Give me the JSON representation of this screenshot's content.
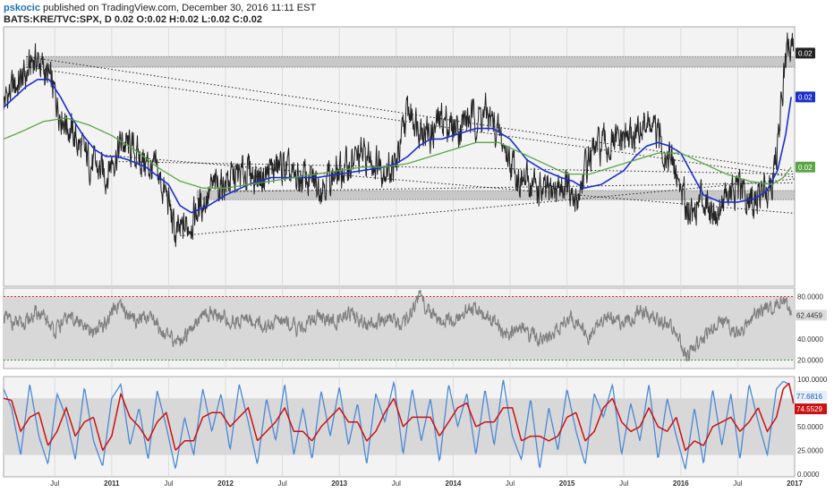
{
  "header": {
    "author": "pskocic",
    "published": "published on TradingView.com, December 30, 2016 11:11 EST",
    "symbol_line": "BATS:KRE/TVC:SPX, D  0.02 O:0.02 H:0.02 L:0.02 C:0.02"
  },
  "colors": {
    "price": "#222222",
    "sma_fast": "#1a2ecc",
    "sma_slow": "#5aa545",
    "rsi": "#7f7f7f",
    "stoch_k": "#4a88d6",
    "stoch_d": "#cc1111",
    "band": "#c8c8c8",
    "rsi_upper": "#e02020",
    "rsi_lower": "#3a9a3a"
  },
  "chart_data": [
    {
      "type": "line",
      "panel": "price",
      "x_ticks": [
        "Jul",
        "2011",
        "Jul",
        "2012",
        "Jul",
        "2013",
        "Jul",
        "2014",
        "Jul",
        "2015",
        "Jul",
        "2016",
        "Jul",
        "2017"
      ],
      "x_tick_years": [
        2010.5,
        2011.0,
        2011.5,
        2012.0,
        2012.5,
        2013.0,
        2013.5,
        2014.0,
        2014.5,
        2015.0,
        2015.5,
        2016.0,
        2016.5,
        2017.0
      ],
      "x_range": [
        2010.05,
        2017.0
      ],
      "y_range": [
        0.0146,
        0.022
      ],
      "last_labels": [
        {
          "text": "0.02",
          "series": "price",
          "value": 0.02125
        },
        {
          "text": "0.02",
          "series": "sma_fast",
          "value": 0.02
        },
        {
          "text": "0.02",
          "series": "sma_slow",
          "value": 0.018
        }
      ],
      "series": [
        {
          "key": "price",
          "x": [
            2010.05,
            2010.15,
            2010.25,
            2010.31,
            2010.36,
            2010.45,
            2010.55,
            2010.65,
            2010.75,
            2010.85,
            2010.95,
            2011.0,
            2011.1,
            2011.2,
            2011.3,
            2011.4,
            2011.5,
            2011.56,
            2011.6,
            2011.7,
            2011.8,
            2011.9,
            2012.0,
            2012.1,
            2012.2,
            2012.3,
            2012.4,
            2012.5,
            2012.6,
            2012.7,
            2012.8,
            2012.9,
            2013.0,
            2013.1,
            2013.2,
            2013.3,
            2013.4,
            2013.5,
            2013.6,
            2013.7,
            2013.8,
            2013.9,
            2014.0,
            2014.1,
            2014.2,
            2014.3,
            2014.4,
            2014.5,
            2014.6,
            2014.7,
            2014.8,
            2014.9,
            2015.0,
            2015.05,
            2015.1,
            2015.2,
            2015.3,
            2015.4,
            2015.5,
            2015.6,
            2015.7,
            2015.8,
            2015.9,
            2016.0,
            2016.05,
            2016.1,
            2016.2,
            2016.3,
            2016.4,
            2016.5,
            2016.6,
            2016.7,
            2016.8,
            2016.85,
            2016.9,
            2016.95,
            2016.99
          ],
          "values": [
            0.0199,
            0.0203,
            0.0206,
            0.0211,
            0.021,
            0.0205,
            0.0196,
            0.019,
            0.0184,
            0.018,
            0.0178,
            0.0182,
            0.0187,
            0.0184,
            0.0181,
            0.0178,
            0.017,
            0.016,
            0.0161,
            0.0165,
            0.017,
            0.0174,
            0.0176,
            0.0177,
            0.0179,
            0.0177,
            0.0179,
            0.018,
            0.0176,
            0.0177,
            0.0175,
            0.0177,
            0.0178,
            0.0181,
            0.0183,
            0.0182,
            0.018,
            0.018,
            0.0196,
            0.0193,
            0.0189,
            0.0194,
            0.0191,
            0.0193,
            0.0194,
            0.0195,
            0.0189,
            0.0182,
            0.0176,
            0.0175,
            0.0172,
            0.0174,
            0.0175,
            0.0168,
            0.0172,
            0.0183,
            0.0186,
            0.0186,
            0.0188,
            0.0189,
            0.0193,
            0.0188,
            0.0183,
            0.0174,
            0.017,
            0.0167,
            0.0172,
            0.0167,
            0.0172,
            0.0173,
            0.017,
            0.0171,
            0.0177,
            0.0185,
            0.0205,
            0.0215,
            0.0213
          ]
        },
        {
          "key": "sma_fast",
          "x": [
            2010.05,
            2010.15,
            2010.25,
            2010.35,
            2010.45,
            2010.55,
            2010.65,
            2010.75,
            2010.85,
            2010.95,
            2011.05,
            2011.15,
            2011.3,
            2011.5,
            2011.6,
            2011.7,
            2011.85,
            2012.0,
            2012.2,
            2012.4,
            2012.6,
            2012.8,
            2013.0,
            2013.2,
            2013.4,
            2013.5,
            2013.6,
            2013.7,
            2013.8,
            2013.9,
            2014.0,
            2014.1,
            2014.2,
            2014.35,
            2014.5,
            2014.65,
            2014.8,
            2014.95,
            2015.05,
            2015.15,
            2015.3,
            2015.5,
            2015.6,
            2015.7,
            2015.8,
            2015.9,
            2016.0,
            2016.1,
            2016.2,
            2016.35,
            2016.5,
            2016.65,
            2016.75,
            2016.85,
            2016.92,
            2016.97
          ],
          "values": [
            0.0197,
            0.02,
            0.0203,
            0.0205,
            0.0205,
            0.02,
            0.0194,
            0.0189,
            0.0185,
            0.0183,
            0.0183,
            0.0182,
            0.018,
            0.0175,
            0.0169,
            0.0167,
            0.0169,
            0.0172,
            0.0175,
            0.0177,
            0.0177,
            0.0177,
            0.0178,
            0.0179,
            0.018,
            0.0181,
            0.0183,
            0.0186,
            0.0188,
            0.0188,
            0.0189,
            0.019,
            0.0191,
            0.0191,
            0.0188,
            0.0182,
            0.0179,
            0.0177,
            0.0176,
            0.0174,
            0.0175,
            0.0179,
            0.0183,
            0.0186,
            0.0187,
            0.0186,
            0.0184,
            0.0178,
            0.0172,
            0.017,
            0.017,
            0.0171,
            0.0173,
            0.0179,
            0.0189,
            0.02
          ]
        },
        {
          "key": "sma_slow",
          "x": [
            2010.05,
            2010.2,
            2010.4,
            2010.6,
            2010.8,
            2011.0,
            2011.2,
            2011.4,
            2011.6,
            2011.8,
            2012.0,
            2012.2,
            2012.4,
            2012.6,
            2012.8,
            2013.0,
            2013.2,
            2013.4,
            2013.6,
            2013.8,
            2014.0,
            2014.2,
            2014.4,
            2014.6,
            2014.8,
            2015.0,
            2015.2,
            2015.4,
            2015.6,
            2015.8,
            2016.0,
            2016.2,
            2016.4,
            2016.6,
            2016.8,
            2016.9,
            2016.97
          ],
          "values": [
            0.0188,
            0.019,
            0.0193,
            0.0194,
            0.0192,
            0.0189,
            0.0185,
            0.018,
            0.0176,
            0.0174,
            0.0174,
            0.0175,
            0.0176,
            0.0177,
            0.0178,
            0.0179,
            0.018,
            0.018,
            0.0181,
            0.0183,
            0.0185,
            0.0187,
            0.0187,
            0.0184,
            0.0181,
            0.0178,
            0.0178,
            0.018,
            0.0182,
            0.0184,
            0.0184,
            0.0181,
            0.0178,
            0.0176,
            0.0175,
            0.0177,
            0.018
          ]
        }
      ],
      "bands": [
        {
          "from": 0.02085,
          "to": 0.02115,
          "x_start": 2010.25,
          "x_end": 2017.0
        },
        {
          "from": 0.01707,
          "to": 0.01733,
          "x_start": 2011.75,
          "x_end": 2017.0
        }
      ]
    },
    {
      "type": "line",
      "panel": "rsi",
      "y_range": [
        12,
        88
      ],
      "y_ticks": [
        "80.0000",
        "40.0000",
        "20.0000"
      ],
      "y_tick_values": [
        80,
        40,
        20
      ],
      "last_label": {
        "text": "62.4459",
        "value": 62.4459
      },
      "upper_line": 80,
      "lower_line": 20,
      "series": [
        {
          "key": "rsi",
          "x": [
            2010.05,
            2010.2,
            2010.35,
            2010.5,
            2010.65,
            2010.8,
            2010.95,
            2011.05,
            2011.2,
            2011.35,
            2011.5,
            2011.6,
            2011.75,
            2011.9,
            2012.05,
            2012.2,
            2012.35,
            2012.5,
            2012.65,
            2012.8,
            2012.95,
            2013.1,
            2013.25,
            2013.4,
            2013.55,
            2013.7,
            2013.85,
            2014.0,
            2014.15,
            2014.3,
            2014.45,
            2014.6,
            2014.75,
            2014.9,
            2015.05,
            2015.2,
            2015.35,
            2015.5,
            2015.65,
            2015.8,
            2015.95,
            2016.05,
            2016.2,
            2016.35,
            2016.5,
            2016.65,
            2016.8,
            2016.9,
            2016.97
          ],
          "values": [
            60,
            52,
            65,
            48,
            62,
            45,
            55,
            70,
            58,
            62,
            40,
            38,
            58,
            66,
            55,
            60,
            50,
            58,
            48,
            62,
            55,
            64,
            52,
            60,
            50,
            80,
            60,
            55,
            70,
            62,
            45,
            52,
            38,
            50,
            58,
            42,
            62,
            56,
            66,
            58,
            48,
            24,
            42,
            58,
            45,
            62,
            70,
            78,
            62.4459
          ]
        }
      ]
    },
    {
      "type": "line",
      "panel": "stochastic",
      "y_range": [
        -3,
        103
      ],
      "y_ticks": [
        "100.0000",
        "50.0000",
        "25.0000",
        "0.0000"
      ],
      "y_tick_values": [
        100,
        50,
        25,
        0
      ],
      "last_labels": [
        {
          "text": "77.6816",
          "series": "stoch_k",
          "value": 77.6816
        },
        {
          "text": "74.5529",
          "series": "stoch_d",
          "value": 74.5529
        }
      ],
      "bands": [
        {
          "from": 20,
          "to": 80
        }
      ],
      "series": [
        {
          "key": "stoch_k",
          "x": [
            2010.05,
            2010.12,
            2010.2,
            2010.28,
            2010.36,
            2010.44,
            2010.52,
            2010.6,
            2010.68,
            2010.76,
            2010.84,
            2010.92,
            2011.0,
            2011.08,
            2011.16,
            2011.24,
            2011.32,
            2011.4,
            2011.48,
            2011.56,
            2011.64,
            2011.72,
            2011.8,
            2011.88,
            2011.96,
            2012.04,
            2012.12,
            2012.2,
            2012.28,
            2012.36,
            2012.44,
            2012.52,
            2012.6,
            2012.68,
            2012.76,
            2012.84,
            2012.92,
            2013.0,
            2013.08,
            2013.16,
            2013.24,
            2013.32,
            2013.4,
            2013.48,
            2013.56,
            2013.64,
            2013.72,
            2013.8,
            2013.88,
            2013.96,
            2014.04,
            2014.12,
            2014.2,
            2014.28,
            2014.36,
            2014.44,
            2014.52,
            2014.6,
            2014.68,
            2014.76,
            2014.84,
            2014.92,
            2015.0,
            2015.08,
            2015.16,
            2015.24,
            2015.32,
            2015.4,
            2015.48,
            2015.56,
            2015.64,
            2015.72,
            2015.8,
            2015.88,
            2015.96,
            2016.04,
            2016.12,
            2016.2,
            2016.28,
            2016.36,
            2016.44,
            2016.52,
            2016.6,
            2016.68,
            2016.76,
            2016.84,
            2016.9,
            2016.95,
            2016.99
          ],
          "values": [
            90,
            70,
            20,
            95,
            40,
            10,
            85,
            60,
            15,
            92,
            35,
            8,
            80,
            95,
            30,
            70,
            15,
            88,
            50,
            5,
            60,
            20,
            90,
            45,
            85,
            25,
            95,
            55,
            10,
            80,
            35,
            95,
            20,
            70,
            15,
            88,
            40,
            92,
            30,
            75,
            10,
            85,
            55,
            98,
            20,
            90,
            35,
            80,
            12,
            95,
            50,
            85,
            20,
            90,
            30,
            100,
            40,
            15,
            80,
            5,
            70,
            25,
            90,
            45,
            10,
            85,
            60,
            95,
            20,
            75,
            35,
            95,
            15,
            80,
            40,
            5,
            70,
            10,
            90,
            30,
            85,
            15,
            95,
            55,
            20,
            90,
            98,
            95,
            77.68
          ]
        },
        {
          "key": "stoch_d",
          "x": [
            2010.05,
            2010.12,
            2010.2,
            2010.28,
            2010.36,
            2010.44,
            2010.52,
            2010.6,
            2010.68,
            2010.76,
            2010.84,
            2010.92,
            2011.0,
            2011.08,
            2011.16,
            2011.24,
            2011.32,
            2011.4,
            2011.48,
            2011.56,
            2011.64,
            2011.72,
            2011.8,
            2011.88,
            2011.96,
            2012.04,
            2012.12,
            2012.2,
            2012.28,
            2012.36,
            2012.44,
            2012.52,
            2012.6,
            2012.68,
            2012.76,
            2012.84,
            2012.92,
            2013.0,
            2013.08,
            2013.16,
            2013.24,
            2013.32,
            2013.4,
            2013.48,
            2013.56,
            2013.64,
            2013.72,
            2013.8,
            2013.88,
            2013.96,
            2014.04,
            2014.12,
            2014.2,
            2014.28,
            2014.36,
            2014.44,
            2014.52,
            2014.6,
            2014.68,
            2014.76,
            2014.84,
            2014.92,
            2015.0,
            2015.08,
            2015.16,
            2015.24,
            2015.32,
            2015.4,
            2015.48,
            2015.56,
            2015.64,
            2015.72,
            2015.8,
            2015.88,
            2015.96,
            2016.04,
            2016.12,
            2016.2,
            2016.28,
            2016.36,
            2016.44,
            2016.52,
            2016.6,
            2016.68,
            2016.76,
            2016.84,
            2016.9,
            2016.95,
            2016.99
          ],
          "values": [
            80,
            78,
            45,
            60,
            65,
            30,
            45,
            70,
            40,
            55,
            60,
            25,
            40,
            85,
            60,
            50,
            35,
            55,
            65,
            25,
            35,
            35,
            60,
            65,
            65,
            50,
            60,
            70,
            35,
            45,
            55,
            70,
            45,
            45,
            35,
            50,
            60,
            70,
            55,
            55,
            35,
            45,
            65,
            80,
            50,
            60,
            60,
            60,
            40,
            55,
            70,
            75,
            50,
            55,
            55,
            70,
            70,
            35,
            40,
            40,
            35,
            40,
            60,
            65,
            35,
            45,
            70,
            80,
            55,
            45,
            50,
            70,
            50,
            45,
            60,
            25,
            35,
            30,
            50,
            55,
            60,
            45,
            55,
            70,
            45,
            60,
            90,
            96,
            74.55
          ]
        }
      ]
    }
  ],
  "trendlines": [
    {
      "x1": 2010.25,
      "y1": 0.02115,
      "x2": 2017.0,
      "y2": 0.01787
    },
    {
      "x1": 2010.25,
      "y1": 0.02085,
      "x2": 2017.0,
      "y2": 0.01771
    },
    {
      "x1": 2010.95,
      "y1": 0.01834,
      "x2": 2017.0,
      "y2": 0.01668
    },
    {
      "x1": 2011.0,
      "y1": 0.01816,
      "x2": 2017.0,
      "y2": 0.0178
    },
    {
      "x1": 2011.6,
      "y1": 0.01604,
      "x2": 2017.0,
      "y2": 0.01766
    },
    {
      "x1": 2012.0,
      "y1": 0.0173,
      "x2": 2017.0,
      "y2": 0.01755
    }
  ]
}
